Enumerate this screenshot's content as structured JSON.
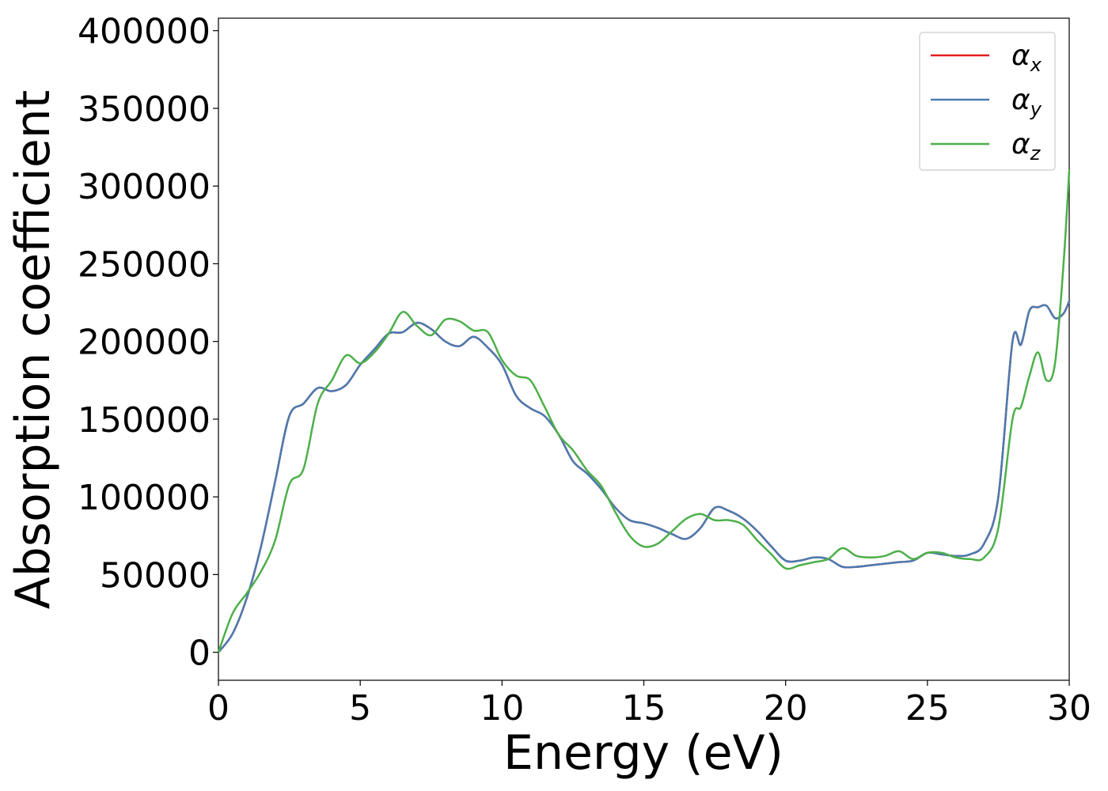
{
  "chart_data": {
    "type": "line",
    "title": "",
    "xlabel": "Energy (eV)",
    "ylabel": "Absorption coefficient",
    "xlim": [
      0,
      30
    ],
    "ylim": [
      -18000,
      408000
    ],
    "xticks": [
      0,
      5,
      10,
      15,
      20,
      25,
      30
    ],
    "yticks": [
      0,
      50000,
      100000,
      150000,
      200000,
      250000,
      300000,
      350000,
      400000
    ],
    "grid": false,
    "legend_position": "top-right",
    "series": [
      {
        "name": "αx",
        "symbol": "α",
        "subscript": "x",
        "color": "#e41a1c",
        "x": [
          0,
          0.5,
          1,
          1.5,
          2,
          2.5,
          3,
          3.5,
          4,
          4.5,
          5,
          5.5,
          6,
          6.5,
          7,
          7.5,
          8,
          8.5,
          9,
          9.5,
          10,
          10.5,
          11,
          11.5,
          12,
          12.5,
          13,
          13.5,
          14,
          14.5,
          15,
          15.5,
          16,
          16.5,
          17,
          17.5,
          18,
          18.5,
          19,
          19.5,
          20,
          20.5,
          21,
          21.5,
          22,
          22.5,
          23,
          23.5,
          24,
          24.5,
          25,
          25.5,
          26,
          26.5,
          27,
          27.5,
          28,
          28.3,
          28.6,
          28.9,
          29.2,
          29.5,
          29.8,
          30
        ],
        "values": [
          0,
          12000,
          35000,
          68000,
          110000,
          152000,
          160000,
          170000,
          168000,
          172000,
          185000,
          195000,
          205000,
          206000,
          212000,
          208000,
          200000,
          197000,
          203000,
          196000,
          185000,
          165000,
          157000,
          152000,
          140000,
          123000,
          115000,
          105000,
          93000,
          85000,
          83000,
          80000,
          76000,
          73000,
          80000,
          93000,
          91000,
          86000,
          78000,
          68000,
          59000,
          59000,
          61000,
          60000,
          55000,
          55000,
          56000,
          57000,
          58000,
          59000,
          64000,
          63000,
          62000,
          63000,
          70000,
          100000,
          200000,
          198000,
          220000,
          222000,
          223000,
          215000,
          218000,
          226000
        ]
      },
      {
        "name": "αy",
        "symbol": "α",
        "subscript": "y",
        "color": "#4a7bb0",
        "x": [
          0,
          0.5,
          1,
          1.5,
          2,
          2.5,
          3,
          3.5,
          4,
          4.5,
          5,
          5.5,
          6,
          6.5,
          7,
          7.5,
          8,
          8.5,
          9,
          9.5,
          10,
          10.5,
          11,
          11.5,
          12,
          12.5,
          13,
          13.5,
          14,
          14.5,
          15,
          15.5,
          16,
          16.5,
          17,
          17.5,
          18,
          18.5,
          19,
          19.5,
          20,
          20.5,
          21,
          21.5,
          22,
          22.5,
          23,
          23.5,
          24,
          24.5,
          25,
          25.5,
          26,
          26.5,
          27,
          27.5,
          28,
          28.3,
          28.6,
          28.9,
          29.2,
          29.5,
          29.8,
          30
        ],
        "values": [
          0,
          12000,
          35000,
          68000,
          110000,
          152000,
          160000,
          170000,
          168000,
          172000,
          185000,
          195000,
          205000,
          206000,
          212000,
          208000,
          200000,
          197000,
          203000,
          196000,
          185000,
          165000,
          157000,
          152000,
          140000,
          123000,
          115000,
          105000,
          93000,
          85000,
          83000,
          80000,
          76000,
          73000,
          80000,
          93000,
          91000,
          86000,
          78000,
          68000,
          59000,
          59000,
          61000,
          60000,
          55000,
          55000,
          56000,
          57000,
          58000,
          59000,
          64000,
          63000,
          62000,
          63000,
          70000,
          100000,
          200000,
          198000,
          220000,
          222000,
          223000,
          215000,
          218000,
          226000
        ]
      },
      {
        "name": "αz",
        "symbol": "α",
        "subscript": "z",
        "color": "#4daf4a",
        "x": [
          0,
          0.5,
          1,
          1.5,
          2,
          2.5,
          3,
          3.5,
          4,
          4.5,
          5,
          5.5,
          6,
          6.5,
          7,
          7.5,
          8,
          8.5,
          9,
          9.5,
          10,
          10.5,
          11,
          11.5,
          12,
          12.5,
          13,
          13.5,
          14,
          14.5,
          15,
          15.5,
          16,
          16.5,
          17,
          17.5,
          18,
          18.5,
          19,
          19.5,
          20,
          20.5,
          21,
          21.5,
          22,
          22.5,
          23,
          23.5,
          24,
          24.5,
          25,
          25.5,
          26,
          26.5,
          27,
          27.5,
          28,
          28.3,
          28.6,
          28.9,
          29.2,
          29.5,
          29.8,
          30
        ],
        "values": [
          0,
          25000,
          38000,
          52000,
          72000,
          108000,
          118000,
          160000,
          175000,
          191000,
          186000,
          193000,
          205000,
          219000,
          210000,
          204000,
          214000,
          213000,
          207000,
          206000,
          188000,
          178000,
          175000,
          158000,
          140000,
          130000,
          117000,
          107000,
          90000,
          75000,
          68000,
          70000,
          78000,
          86000,
          89000,
          85000,
          85000,
          82000,
          72000,
          63000,
          54000,
          56000,
          58000,
          60000,
          67000,
          62000,
          61000,
          62000,
          65000,
          60000,
          64000,
          64000,
          61000,
          60000,
          61000,
          80000,
          150000,
          158000,
          178000,
          193000,
          175000,
          186000,
          250000,
          310000
        ]
      }
    ]
  }
}
